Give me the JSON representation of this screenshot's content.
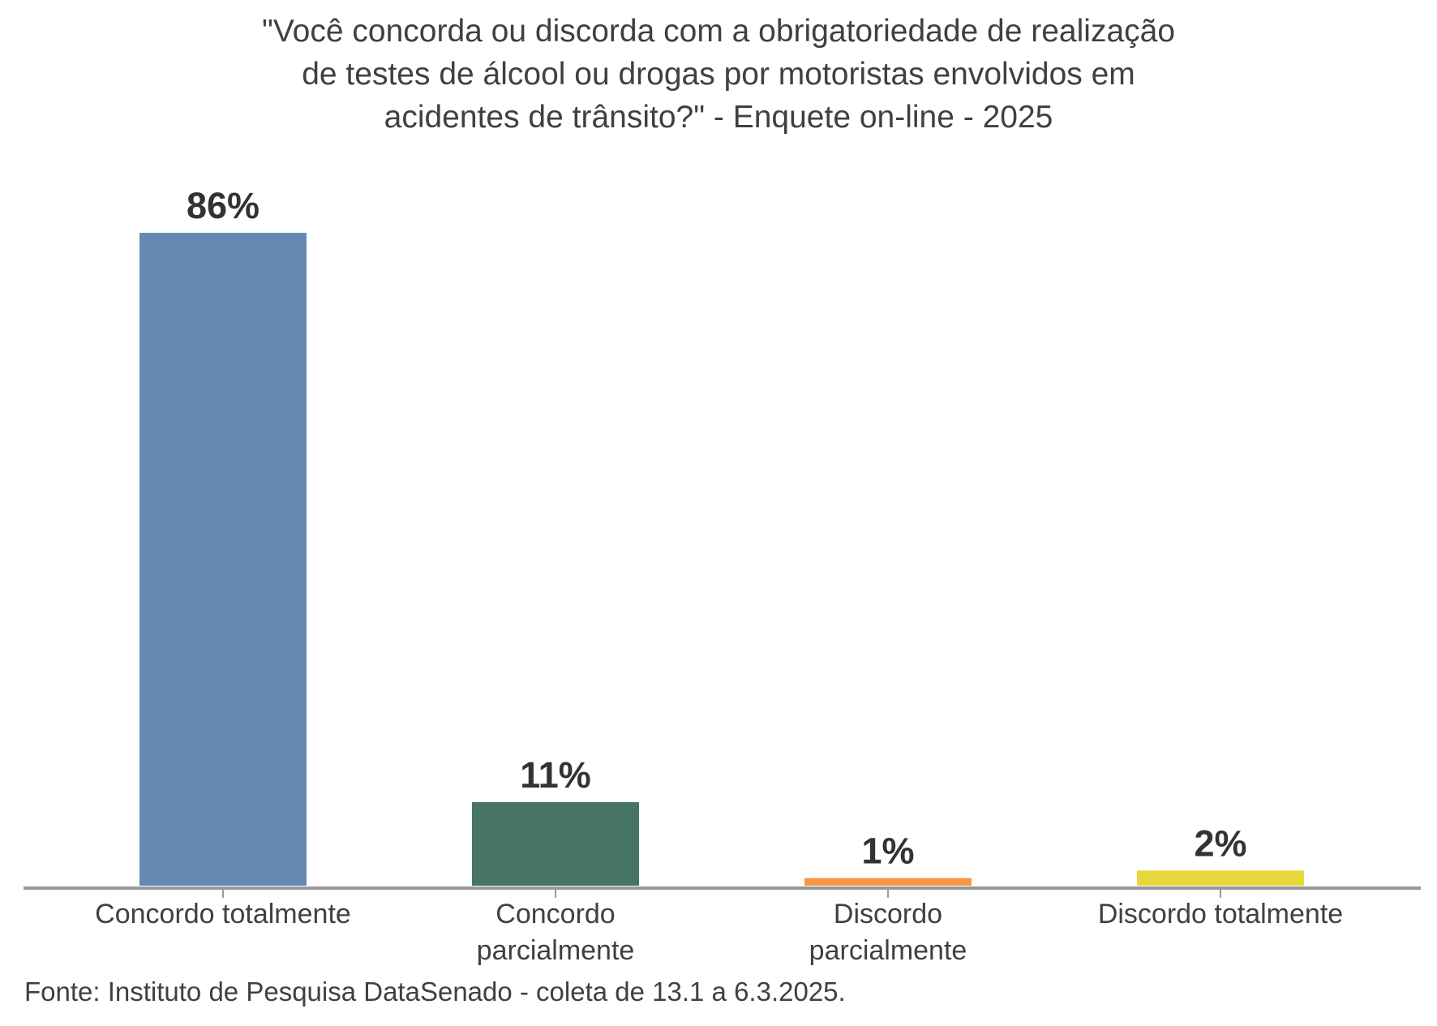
{
  "chart_data": {
    "type": "bar",
    "title_lines": [
      "\"Você concorda ou discorda com a obrigatoriedade de realização",
      "de testes de álcool ou drogas por motoristas envolvidos em",
      "acidentes de trânsito?\" - Enquete on-line - 2025"
    ],
    "categories": [
      [
        "Concordo totalmente"
      ],
      [
        "Concordo",
        "parcialmente"
      ],
      [
        "Discordo",
        "parcialmente"
      ],
      [
        "Discordo totalmente"
      ]
    ],
    "values": [
      86,
      11,
      1,
      2
    ],
    "data_labels": [
      "86%",
      "11%",
      "1%",
      "2%"
    ],
    "colors": [
      "#6589b2",
      "#467563",
      "#f79646",
      "#e6d83a"
    ],
    "xlabel": "",
    "ylabel": "",
    "ylim": [
      0,
      100
    ],
    "grid": false,
    "legend": "none",
    "footer": "Fonte: Instituto de Pesquisa DataSenado - coleta de 13.1 a 6.3.2025."
  }
}
